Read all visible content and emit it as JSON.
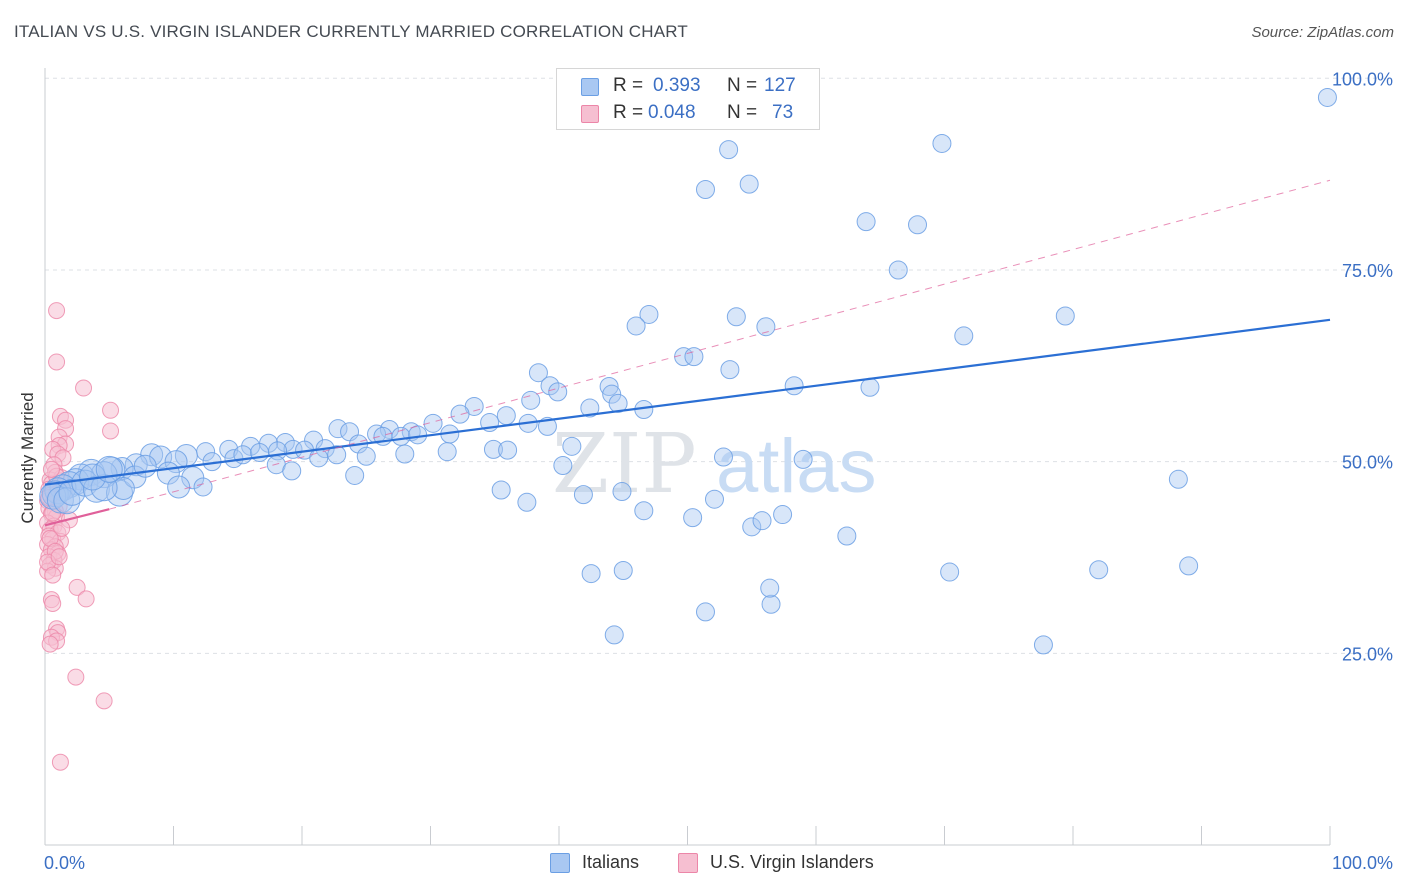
{
  "title": "ITALIAN VS U.S. VIRGIN ISLANDER CURRENTLY MARRIED CORRELATION CHART",
  "source": "Source: ZipAtlas.com",
  "colors": {
    "blue": "#6b9fe4",
    "blue_fill": "#a9c8f2",
    "blue_line": "#2b6fd4",
    "pink": "#ec86a8",
    "pink_fill": "#f6bfd1",
    "pink_line": "#e0609a",
    "axis_label": "#3b6fc4",
    "grid": "#dde0e5"
  },
  "legend": {
    "rows": [
      {
        "r_label": "R =",
        "r_value": "0.393",
        "n_label": "N =",
        "n_value": "127"
      },
      {
        "r_label": "R =",
        "r_value": "0.048",
        "n_label": "N =",
        "n_value": "73"
      }
    ]
  },
  "bottom_legend": [
    "Italians",
    "U.S. Virgin Islanders"
  ],
  "chart_data": {
    "type": "scatter",
    "title": "ITALIAN VS U.S. VIRGIN ISLANDER CURRENTLY MARRIED CORRELATION CHART",
    "xlabel": "",
    "ylabel": "Currently Married",
    "xlim": [
      0,
      100
    ],
    "ylim": [
      0,
      100
    ],
    "x_tick_labels": [
      "0.0%",
      "100.0%"
    ],
    "y_ticks": [
      25,
      50,
      75,
      100
    ],
    "y_tick_labels": [
      "25.0%",
      "50.0%",
      "75.0%",
      "100.0%"
    ],
    "watermark": "ZIPatlas",
    "series": [
      {
        "name": "Italians",
        "r": 0.393,
        "n": 127,
        "trend": {
          "x0": 0,
          "y0": 47.0,
          "x1": 100,
          "y1": 68.5
        },
        "points": [
          [
            99.8,
            97.5
          ],
          [
            53.2,
            90.7
          ],
          [
            69.8,
            91.5
          ],
          [
            51.4,
            85.5
          ],
          [
            54.8,
            86.2
          ],
          [
            63.9,
            81.3
          ],
          [
            67.9,
            80.9
          ],
          [
            66.4,
            75.0
          ],
          [
            47.0,
            69.2
          ],
          [
            46.0,
            67.7
          ],
          [
            53.8,
            68.9
          ],
          [
            56.1,
            67.6
          ],
          [
            79.4,
            69.0
          ],
          [
            71.5,
            66.4
          ],
          [
            49.7,
            63.7
          ],
          [
            50.5,
            63.7
          ],
          [
            53.3,
            62.0
          ],
          [
            38.4,
            61.6
          ],
          [
            39.3,
            59.9
          ],
          [
            58.3,
            59.9
          ],
          [
            64.2,
            59.7
          ],
          [
            43.9,
            59.8
          ],
          [
            39.9,
            59.1
          ],
          [
            44.1,
            58.8
          ],
          [
            37.8,
            58.0
          ],
          [
            42.4,
            57.0
          ],
          [
            44.6,
            57.6
          ],
          [
            46.6,
            56.8
          ],
          [
            33.4,
            57.2
          ],
          [
            32.3,
            56.2
          ],
          [
            35.9,
            56.0
          ],
          [
            34.6,
            55.1
          ],
          [
            37.6,
            55.0
          ],
          [
            39.1,
            54.6
          ],
          [
            22.8,
            54.3
          ],
          [
            30.2,
            55.0
          ],
          [
            26.8,
            54.2
          ],
          [
            23.7,
            53.9
          ],
          [
            25.8,
            53.6
          ],
          [
            28.5,
            53.9
          ],
          [
            27.7,
            53.3
          ],
          [
            29.0,
            53.5
          ],
          [
            31.5,
            53.6
          ],
          [
            20.9,
            52.8
          ],
          [
            18.7,
            52.5
          ],
          [
            17.4,
            52.4
          ],
          [
            16.0,
            52.0
          ],
          [
            19.3,
            51.6
          ],
          [
            21.8,
            51.7
          ],
          [
            24.4,
            52.3
          ],
          [
            26.3,
            53.3
          ],
          [
            14.3,
            51.6
          ],
          [
            12.5,
            51.3
          ],
          [
            11.0,
            50.8
          ],
          [
            8.3,
            50.9
          ],
          [
            9.0,
            50.6
          ],
          [
            10.2,
            50.0
          ],
          [
            13.0,
            50.0
          ],
          [
            14.7,
            50.4
          ],
          [
            15.4,
            50.9
          ],
          [
            16.7,
            51.2
          ],
          [
            18.1,
            51.4
          ],
          [
            20.2,
            51.5
          ],
          [
            21.3,
            50.5
          ],
          [
            22.7,
            50.9
          ],
          [
            7.1,
            49.6
          ],
          [
            6.0,
            49.1
          ],
          [
            5.2,
            48.9
          ],
          [
            3.6,
            48.6
          ],
          [
            4.6,
            48.3
          ],
          [
            2.8,
            48.0
          ],
          [
            2.4,
            47.4
          ],
          [
            1.9,
            47.0
          ],
          [
            1.4,
            46.6
          ],
          [
            1.0,
            46.2
          ],
          [
            0.8,
            45.8
          ],
          [
            0.6,
            45.5
          ],
          [
            1.2,
            45.0
          ],
          [
            1.7,
            44.9
          ],
          [
            2.1,
            46.0
          ],
          [
            3.1,
            47.2
          ],
          [
            4.0,
            46.4
          ],
          [
            5.8,
            45.9
          ],
          [
            7.0,
            48.0
          ],
          [
            9.6,
            48.5
          ],
          [
            11.5,
            47.9
          ],
          [
            12.3,
            46.7
          ],
          [
            10.4,
            46.7
          ],
          [
            18.0,
            49.6
          ],
          [
            19.2,
            48.8
          ],
          [
            24.1,
            48.2
          ],
          [
            25.0,
            50.7
          ],
          [
            28.0,
            51.0
          ],
          [
            31.3,
            51.3
          ],
          [
            34.9,
            51.6
          ],
          [
            36.0,
            51.5
          ],
          [
            41.0,
            52.0
          ],
          [
            40.3,
            49.5
          ],
          [
            35.5,
            46.3
          ],
          [
            41.9,
            45.7
          ],
          [
            44.9,
            46.1
          ],
          [
            37.5,
            44.7
          ],
          [
            46.6,
            43.6
          ],
          [
            52.1,
            45.1
          ],
          [
            50.4,
            42.7
          ],
          [
            57.4,
            43.1
          ],
          [
            55.0,
            41.5
          ],
          [
            55.8,
            42.3
          ],
          [
            62.4,
            40.3
          ],
          [
            70.4,
            35.6
          ],
          [
            82.0,
            35.9
          ],
          [
            89.0,
            36.4
          ],
          [
            42.5,
            35.4
          ],
          [
            45.0,
            35.8
          ],
          [
            56.5,
            31.4
          ],
          [
            56.4,
            33.5
          ],
          [
            44.3,
            27.4
          ],
          [
            51.4,
            30.4
          ],
          [
            77.7,
            26.1
          ],
          [
            88.2,
            47.7
          ],
          [
            52.8,
            50.6
          ],
          [
            59.0,
            50.3
          ],
          [
            6.1,
            46.5
          ],
          [
            4.6,
            46.6
          ],
          [
            3.7,
            48.0
          ],
          [
            5.0,
            49.0
          ],
          [
            7.8,
            49.4
          ]
        ]
      },
      {
        "name": "U.S. Virgin Islanders",
        "r": 0.048,
        "n": 73,
        "trend": {
          "x0": 0,
          "y0": 41.7,
          "x1": 5,
          "y1": 43.8
        },
        "trend_extended": {
          "x0": 5,
          "y0": 43.8,
          "x1": 100,
          "y1": 86.7
        },
        "points": [
          [
            0.9,
            69.7
          ],
          [
            0.9,
            63.0
          ],
          [
            3.0,
            59.6
          ],
          [
            5.1,
            56.7
          ],
          [
            1.2,
            55.9
          ],
          [
            1.6,
            55.4
          ],
          [
            1.6,
            54.3
          ],
          [
            5.1,
            54.0
          ],
          [
            1.1,
            53.2
          ],
          [
            1.6,
            52.3
          ],
          [
            1.1,
            52.1
          ],
          [
            0.6,
            51.6
          ],
          [
            1.0,
            51.0
          ],
          [
            1.4,
            50.5
          ],
          [
            0.7,
            49.6
          ],
          [
            0.8,
            48.6
          ],
          [
            0.4,
            47.6
          ],
          [
            1.2,
            47.5
          ],
          [
            0.5,
            47.1
          ],
          [
            1.0,
            46.7
          ],
          [
            0.3,
            46.4
          ],
          [
            0.6,
            46.3
          ],
          [
            0.9,
            45.8
          ],
          [
            0.4,
            45.6
          ],
          [
            0.7,
            45.1
          ],
          [
            0.2,
            44.9
          ],
          [
            0.6,
            44.5
          ],
          [
            1.1,
            44.2
          ],
          [
            0.3,
            43.9
          ],
          [
            0.8,
            43.6
          ],
          [
            0.5,
            43.2
          ],
          [
            0.9,
            42.8
          ],
          [
            1.9,
            42.4
          ],
          [
            0.2,
            42.0
          ],
          [
            0.7,
            41.6
          ],
          [
            0.4,
            41.1
          ],
          [
            1.0,
            40.7
          ],
          [
            0.3,
            40.3
          ],
          [
            0.6,
            39.9
          ],
          [
            1.2,
            39.6
          ],
          [
            0.2,
            39.2
          ],
          [
            0.8,
            38.9
          ],
          [
            0.5,
            38.5
          ],
          [
            1.0,
            38.0
          ],
          [
            0.3,
            37.6
          ],
          [
            0.7,
            37.1
          ],
          [
            0.4,
            36.5
          ],
          [
            0.8,
            36.1
          ],
          [
            0.2,
            35.7
          ],
          [
            2.5,
            33.6
          ],
          [
            3.2,
            32.1
          ],
          [
            0.5,
            32.0
          ],
          [
            0.6,
            31.5
          ],
          [
            0.9,
            28.2
          ],
          [
            1.0,
            27.7
          ],
          [
            0.5,
            27.1
          ],
          [
            0.9,
            26.6
          ],
          [
            0.4,
            26.2
          ],
          [
            2.4,
            21.9
          ],
          [
            4.6,
            18.8
          ],
          [
            1.2,
            10.8
          ],
          [
            1.3,
            47.9
          ],
          [
            0.9,
            48.1
          ],
          [
            0.5,
            49.0
          ],
          [
            1.5,
            46.0
          ],
          [
            0.3,
            45.3
          ],
          [
            0.6,
            43.3
          ],
          [
            1.3,
            41.3
          ],
          [
            0.4,
            40.0
          ],
          [
            0.8,
            38.3
          ],
          [
            0.2,
            36.9
          ],
          [
            1.1,
            37.6
          ],
          [
            0.6,
            35.2
          ]
        ]
      }
    ]
  }
}
